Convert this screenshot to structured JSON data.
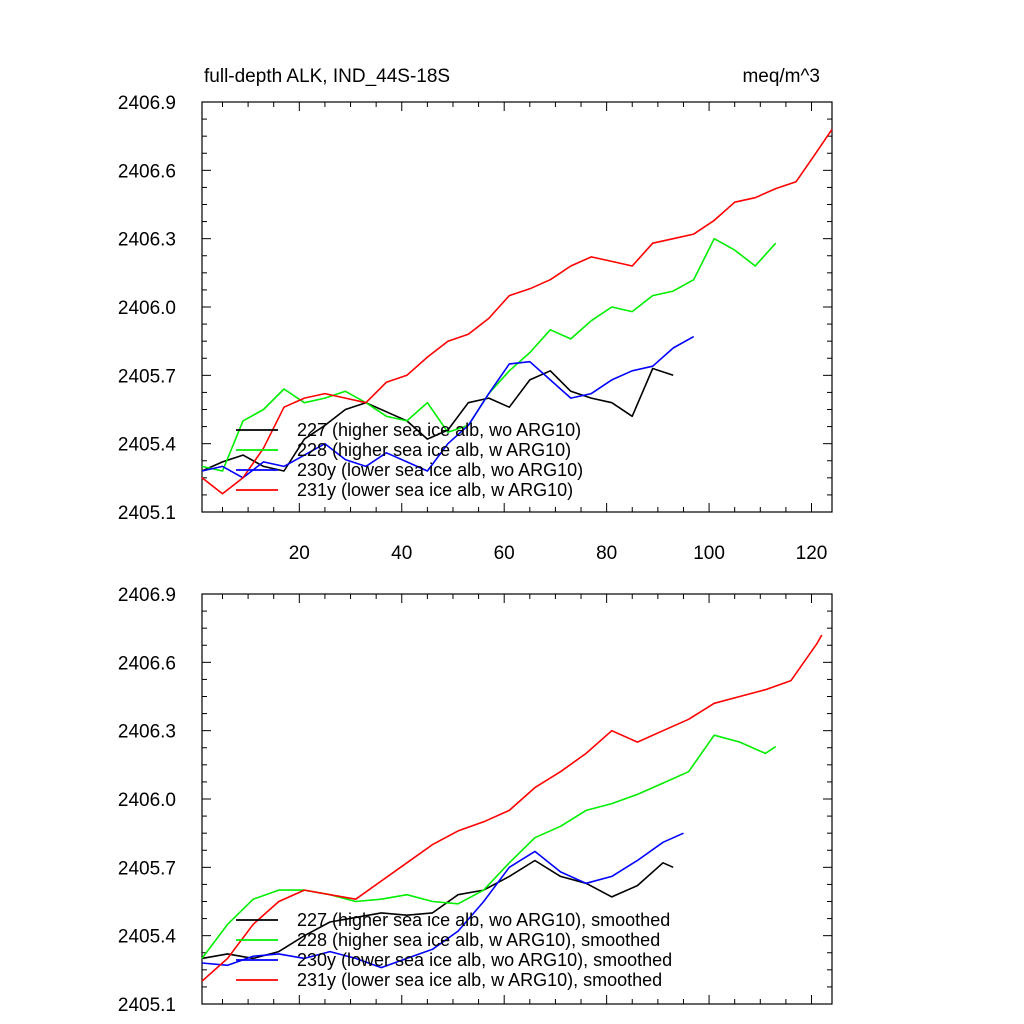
{
  "title_left": "full-depth ALK, IND_44S-18S",
  "title_right": "meq/m^3",
  "colors": {
    "227": "#000000",
    "228": "#00ee00",
    "230y": "#0000ff",
    "231y": "#ff0000"
  },
  "chart_data": [
    {
      "type": "line",
      "title": "full-depth ALK, IND_44S-18S",
      "units": "meq/m^3",
      "xlim": [
        1,
        124
      ],
      "ylim": [
        2405.1,
        2406.9
      ],
      "xticks": [
        20,
        40,
        60,
        80,
        100,
        120
      ],
      "xtick_labels": [
        "20",
        "40",
        "60",
        "80",
        "100",
        "120"
      ],
      "yticks": [
        2405.1,
        2405.4,
        2405.7,
        2406.0,
        2406.3,
        2406.6,
        2406.9
      ],
      "ytick_labels": [
        "2405.1",
        "2405.4",
        "2405.7",
        "2406.0",
        "2406.3",
        "2406.6",
        "2406.9"
      ],
      "legend_position": "lower-left",
      "series": [
        {
          "key": "227",
          "name": "227 (higher sea ice alb, wo ARG10)",
          "x": [
            1,
            5,
            9,
            13,
            17,
            21,
            25,
            29,
            33,
            37,
            41,
            45,
            49,
            53,
            57,
            61,
            65,
            69,
            73,
            77,
            81,
            85,
            89,
            93
          ],
          "y": [
            2405.28,
            2405.32,
            2405.35,
            2405.3,
            2405.28,
            2405.42,
            2405.48,
            2405.55,
            2405.58,
            2405.54,
            2405.5,
            2405.42,
            2405.46,
            2405.58,
            2405.6,
            2405.56,
            2405.68,
            2405.72,
            2405.63,
            2405.6,
            2405.58,
            2405.52,
            2405.73,
            2405.7
          ]
        },
        {
          "key": "228",
          "name": "228 (higher sea ice alb, w ARG10)",
          "x": [
            1,
            5,
            9,
            13,
            17,
            21,
            25,
            29,
            33,
            37,
            41,
            45,
            49,
            53,
            57,
            61,
            65,
            69,
            73,
            77,
            81,
            85,
            89,
            93,
            97,
            101,
            105,
            109,
            113
          ],
          "y": [
            2405.3,
            2405.28,
            2405.5,
            2405.55,
            2405.64,
            2405.58,
            2405.6,
            2405.63,
            2405.58,
            2405.52,
            2405.5,
            2405.58,
            2405.45,
            2405.48,
            2405.62,
            2405.72,
            2405.8,
            2405.9,
            2405.86,
            2405.94,
            2406.0,
            2405.98,
            2406.05,
            2406.07,
            2406.12,
            2406.3,
            2406.25,
            2406.18,
            2406.28
          ]
        },
        {
          "key": "230y",
          "name": "230y (lower sea ice alb, wo ARG10)",
          "x": [
            1,
            5,
            9,
            13,
            17,
            21,
            25,
            29,
            33,
            37,
            41,
            45,
            49,
            53,
            57,
            61,
            65,
            69,
            73,
            77,
            81,
            85,
            89,
            93,
            97
          ],
          "y": [
            2405.28,
            2405.3,
            2405.25,
            2405.32,
            2405.3,
            2405.35,
            2405.4,
            2405.33,
            2405.3,
            2405.36,
            2405.32,
            2405.28,
            2405.4,
            2405.48,
            2405.62,
            2405.75,
            2405.76,
            2405.68,
            2405.6,
            2405.62,
            2405.68,
            2405.72,
            2405.74,
            2405.82,
            2405.87
          ]
        },
        {
          "key": "231y",
          "name": "231y (lower sea ice alb, w ARG10)",
          "x": [
            1,
            5,
            9,
            13,
            17,
            21,
            25,
            29,
            33,
            37,
            41,
            45,
            49,
            53,
            57,
            61,
            65,
            69,
            73,
            77,
            81,
            85,
            89,
            93,
            97,
            101,
            105,
            109,
            113,
            117,
            121,
            124
          ],
          "y": [
            2405.25,
            2405.18,
            2405.25,
            2405.38,
            2405.56,
            2405.6,
            2405.62,
            2405.6,
            2405.58,
            2405.67,
            2405.7,
            2405.78,
            2405.85,
            2405.88,
            2405.95,
            2406.05,
            2406.08,
            2406.12,
            2406.18,
            2406.22,
            2406.2,
            2406.18,
            2406.28,
            2406.3,
            2406.32,
            2406.38,
            2406.46,
            2406.48,
            2406.52,
            2406.55,
            2406.68,
            2406.78
          ]
        }
      ]
    },
    {
      "type": "line",
      "xlim": [
        1,
        124
      ],
      "ylim": [
        2405.1,
        2406.9
      ],
      "xticks": [
        20,
        40,
        60,
        80,
        100,
        120
      ],
      "yticks": [
        2405.1,
        2405.4,
        2405.7,
        2406.0,
        2406.3,
        2406.6,
        2406.9
      ],
      "ytick_labels": [
        "2405.1",
        "2405.4",
        "2405.7",
        "2406.0",
        "2406.3",
        "2406.6",
        "2406.9"
      ],
      "legend_position": "lower-left",
      "series": [
        {
          "key": "227",
          "name": "227 (higher sea ice alb, wo ARG10), smoothed",
          "x": [
            1,
            6,
            11,
            16,
            21,
            26,
            31,
            36,
            41,
            46,
            51,
            56,
            61,
            66,
            71,
            76,
            81,
            86,
            91,
            93
          ],
          "y": [
            2405.3,
            2405.32,
            2405.3,
            2405.33,
            2405.4,
            2405.46,
            2405.48,
            2405.5,
            2405.49,
            2405.5,
            2405.58,
            2405.6,
            2405.66,
            2405.73,
            2405.66,
            2405.63,
            2405.57,
            2405.62,
            2405.72,
            2405.7
          ]
        },
        {
          "key": "228",
          "name": "228 (higher sea ice alb, w ARG10), smoothed",
          "x": [
            1,
            6,
            11,
            16,
            21,
            26,
            31,
            36,
            41,
            46,
            51,
            56,
            61,
            66,
            71,
            76,
            81,
            86,
            91,
            96,
            101,
            106,
            111,
            113
          ],
          "y": [
            2405.3,
            2405.45,
            2405.56,
            2405.6,
            2405.6,
            2405.58,
            2405.55,
            2405.56,
            2405.58,
            2405.55,
            2405.54,
            2405.6,
            2405.72,
            2405.83,
            2405.88,
            2405.95,
            2405.98,
            2406.02,
            2406.07,
            2406.12,
            2406.28,
            2406.25,
            2406.2,
            2406.23
          ]
        },
        {
          "key": "230y",
          "name": "230y (lower sea ice alb, wo ARG10), smoothed",
          "x": [
            1,
            6,
            11,
            16,
            21,
            26,
            31,
            36,
            41,
            46,
            51,
            56,
            61,
            66,
            71,
            76,
            81,
            86,
            91,
            95
          ],
          "y": [
            2405.28,
            2405.27,
            2405.31,
            2405.32,
            2405.3,
            2405.33,
            2405.3,
            2405.26,
            2405.3,
            2405.34,
            2405.42,
            2405.55,
            2405.7,
            2405.77,
            2405.68,
            2405.63,
            2405.66,
            2405.73,
            2405.81,
            2405.85
          ]
        },
        {
          "key": "231y",
          "name": "231y (lower sea ice alb, w ARG10), smoothed",
          "x": [
            1,
            6,
            11,
            16,
            21,
            26,
            31,
            36,
            41,
            46,
            51,
            56,
            61,
            66,
            71,
            76,
            81,
            86,
            91,
            96,
            101,
            106,
            111,
            116,
            121,
            122
          ],
          "y": [
            2405.2,
            2405.3,
            2405.45,
            2405.55,
            2405.6,
            2405.58,
            2405.56,
            2405.64,
            2405.72,
            2405.8,
            2405.86,
            2405.9,
            2405.95,
            2406.05,
            2406.12,
            2406.2,
            2406.3,
            2406.25,
            2406.3,
            2406.35,
            2406.42,
            2406.45,
            2406.48,
            2406.52,
            2406.68,
            2406.72
          ]
        }
      ]
    }
  ]
}
